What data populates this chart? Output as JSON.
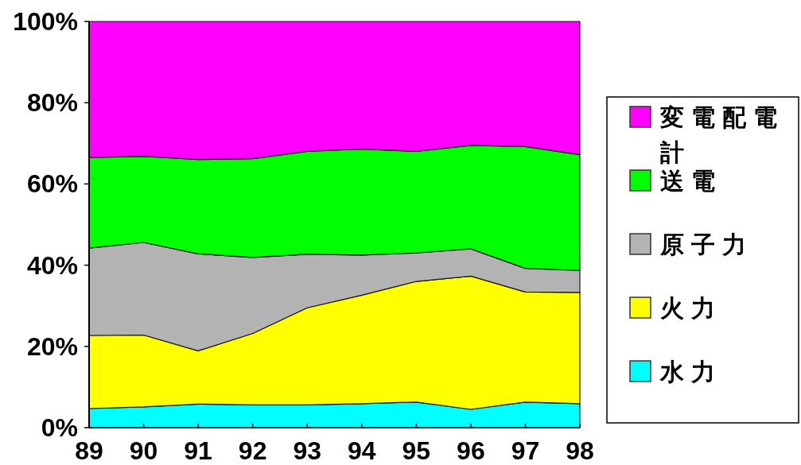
{
  "chart_data": {
    "type": "area",
    "stacked": true,
    "categories": [
      "89",
      "90",
      "91",
      "92",
      "93",
      "94",
      "95",
      "96",
      "97",
      "98"
    ],
    "series": [
      {
        "name": "水力",
        "color": "#00ffff",
        "values": [
          4.7,
          5.1,
          5.8,
          5.6,
          5.6,
          5.9,
          6.3,
          4.5,
          6.3,
          5.9
        ]
      },
      {
        "name": "火力",
        "color": "#ffff00",
        "values": [
          18.0,
          17.7,
          13.1,
          17.6,
          23.9,
          26.7,
          29.7,
          32.8,
          27.1,
          27.4
        ]
      },
      {
        "name": "原子力",
        "color": "#b3b3b3",
        "values": [
          21.5,
          22.8,
          23.9,
          18.7,
          13.2,
          9.9,
          7.0,
          6.7,
          5.8,
          5.4
        ]
      },
      {
        "name": "送電",
        "color": "#00ff00",
        "values": [
          22.3,
          21.2,
          23.2,
          24.3,
          25.3,
          26.1,
          25.0,
          25.5,
          30.0,
          28.5
        ]
      },
      {
        "name": "変電配電計",
        "color": "#ff00ff",
        "values": [
          33.5,
          33.2,
          34.0,
          33.8,
          32.0,
          31.4,
          32.0,
          30.5,
          30.8,
          32.8
        ]
      }
    ],
    "ylim": [
      0,
      100
    ],
    "yticks": [
      {
        "value": 0,
        "label": "0%"
      },
      {
        "value": 20,
        "label": "20%"
      },
      {
        "value": 40,
        "label": "40%"
      },
      {
        "value": 60,
        "label": "60%"
      },
      {
        "value": 80,
        "label": "80%"
      },
      {
        "value": 100,
        "label": "100%"
      }
    ],
    "legend": "right"
  }
}
